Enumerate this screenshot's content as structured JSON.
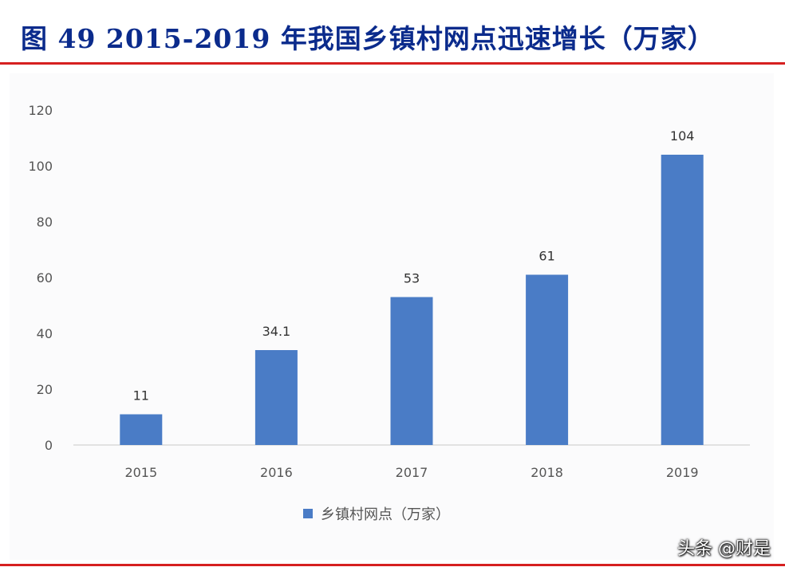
{
  "header": {
    "title": "图 49 2015-2019 年我国乡镇村网点迅速增长（万家）"
  },
  "watermark": "头条 @财是",
  "colors": {
    "bar": "#4a7cc6",
    "rule": "#d62020",
    "title": "#0b2b8c"
  },
  "chart_data": {
    "type": "bar",
    "title": "图 49 2015-2019 年我国乡镇村网点迅速增长（万家）",
    "categories": [
      "2015",
      "2016",
      "2017",
      "2018",
      "2019"
    ],
    "series": [
      {
        "name": "乡镇村网点（万家）",
        "values": [
          11,
          34,
          53,
          61,
          104
        ]
      }
    ],
    "data_labels": [
      "11",
      "34.1",
      "53",
      "61",
      "104"
    ],
    "yticks": [
      0,
      20,
      40,
      60,
      80,
      100,
      120
    ],
    "ylim": [
      0,
      120
    ],
    "xlabel": "",
    "ylabel": "",
    "grid": false,
    "legend": "bottom-center"
  }
}
